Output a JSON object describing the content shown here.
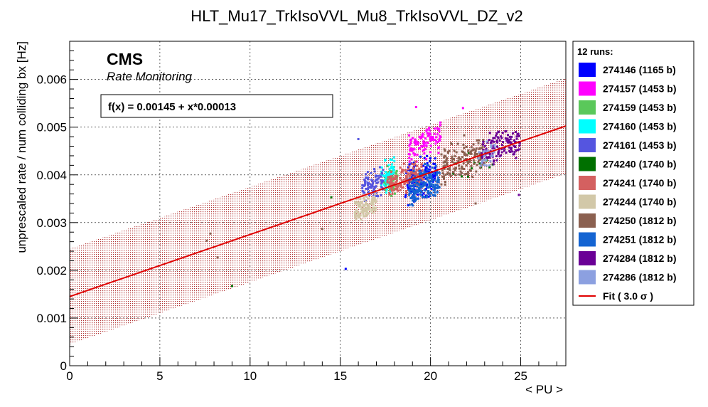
{
  "chart_data": {
    "type": "scatter",
    "title": "HLT_Mu17_TrkIsoVVL_Mu8_TrkIsoVVL_DZ_v2",
    "xlabel": "< PU >",
    "ylabel": "unprescaled rate / num colliding bx [Hz]",
    "xlim": [
      0,
      27.5
    ],
    "ylim": [
      0,
      0.0068
    ],
    "x_ticks": [
      0,
      5,
      10,
      15,
      20,
      25
    ],
    "x_tick_labels": [
      "0",
      "5",
      "10",
      "15",
      "20",
      "25"
    ],
    "y_ticks": [
      0,
      0.001,
      0.002,
      0.003,
      0.004,
      0.005,
      0.006
    ],
    "y_tick_labels": [
      "0",
      "0.001",
      "0.002",
      "0.003",
      "0.004",
      "0.005",
      "0.006"
    ],
    "grid": true,
    "legend_position": "right",
    "annotations": {
      "experiment": "CMS",
      "subtitle": "Rate Monitoring",
      "fit_formula": "f(x) = 0.00145 + x*0.00013"
    },
    "legend_header": "12 runs:",
    "fit": {
      "label": "Fit ( 3.0 σ )",
      "intercept": 0.00145,
      "slope": 0.00013,
      "band_halfwidth": 0.001,
      "color": "#e00000",
      "band_color": "#b03030"
    },
    "series": [
      {
        "name": "274146 (1165 b)",
        "color": "#0000ff",
        "x_range": [
          18.6,
          20.3
        ],
        "y_center": 0.0039,
        "y_spread": 0.0006,
        "n": 160
      },
      {
        "name": "274157 (1453 b)",
        "color": "#ff00ff",
        "x_range": [
          18.8,
          20.6
        ],
        "y_center": 0.0047,
        "y_spread": 0.00045,
        "n": 110
      },
      {
        "name": "274159 (1453 b)",
        "color": "#5ac85a",
        "x_range": [
          17.4,
          18.2
        ],
        "y_center": 0.0039,
        "y_spread": 0.0004,
        "n": 50
      },
      {
        "name": "274160 (1453 b)",
        "color": "#00ffff",
        "x_range": [
          17.2,
          18.0
        ],
        "y_center": 0.004,
        "y_spread": 0.0005,
        "n": 60
      },
      {
        "name": "274161 (1453 b)",
        "color": "#5555e0",
        "x_range": [
          16.2,
          17.4
        ],
        "y_center": 0.0038,
        "y_spread": 0.0004,
        "n": 90
      },
      {
        "name": "274240 (1740 b)",
        "color": "#007000",
        "x_range": [
          21.0,
          23.5
        ],
        "y_center": 0.0042,
        "y_spread": 0.0004,
        "n": 12
      },
      {
        "name": "274241 (1740 b)",
        "color": "#d46060",
        "x_range": [
          17.6,
          19.6
        ],
        "y_center": 0.0039,
        "y_spread": 0.0004,
        "n": 150
      },
      {
        "name": "274244 (1740 b)",
        "color": "#d2c8a8",
        "x_range": [
          15.8,
          17.0
        ],
        "y_center": 0.0033,
        "y_spread": 0.00035,
        "n": 120
      },
      {
        "name": "274250 (1812 b)",
        "color": "#8b6050",
        "x_range": [
          20.6,
          23.0
        ],
        "y_center": 0.0043,
        "y_spread": 0.0006,
        "n": 160
      },
      {
        "name": "274251 (1812 b)",
        "color": "#1464d2",
        "x_range": [
          18.8,
          20.5
        ],
        "y_center": 0.0038,
        "y_spread": 0.0005,
        "n": 170
      },
      {
        "name": "274284 (1812 b)",
        "color": "#6a0096",
        "x_range": [
          22.8,
          25.0
        ],
        "y_center": 0.0046,
        "y_spread": 0.0005,
        "n": 130
      },
      {
        "name": "274286 (1812 b)",
        "color": "#8ca0e0",
        "x_range": [
          22.6,
          23.6
        ],
        "y_center": 0.0044,
        "y_spread": 0.0004,
        "n": 30
      }
    ],
    "outliers": [
      {
        "x": 7.6,
        "y": 0.00262,
        "color": "#8b6050"
      },
      {
        "x": 7.8,
        "y": 0.00277,
        "color": "#8b6050"
      },
      {
        "x": 8.2,
        "y": 0.00227,
        "color": "#8b6050"
      },
      {
        "x": 9.0,
        "y": 0.00167,
        "color": "#007000"
      },
      {
        "x": 14.0,
        "y": 0.00287,
        "color": "#8b6050"
      },
      {
        "x": 14.5,
        "y": 0.00353,
        "color": "#007000"
      },
      {
        "x": 15.3,
        "y": 0.00203,
        "color": "#0000ff"
      },
      {
        "x": 16.0,
        "y": 0.00475,
        "color": "#5555e0"
      },
      {
        "x": 19.2,
        "y": 0.00542,
        "color": "#ff00ff"
      },
      {
        "x": 21.8,
        "y": 0.0054,
        "color": "#ff00ff"
      },
      {
        "x": 22.5,
        "y": 0.0034,
        "color": "#8b6050"
      },
      {
        "x": 24.9,
        "y": 0.00358,
        "color": "#6a0096"
      }
    ]
  }
}
